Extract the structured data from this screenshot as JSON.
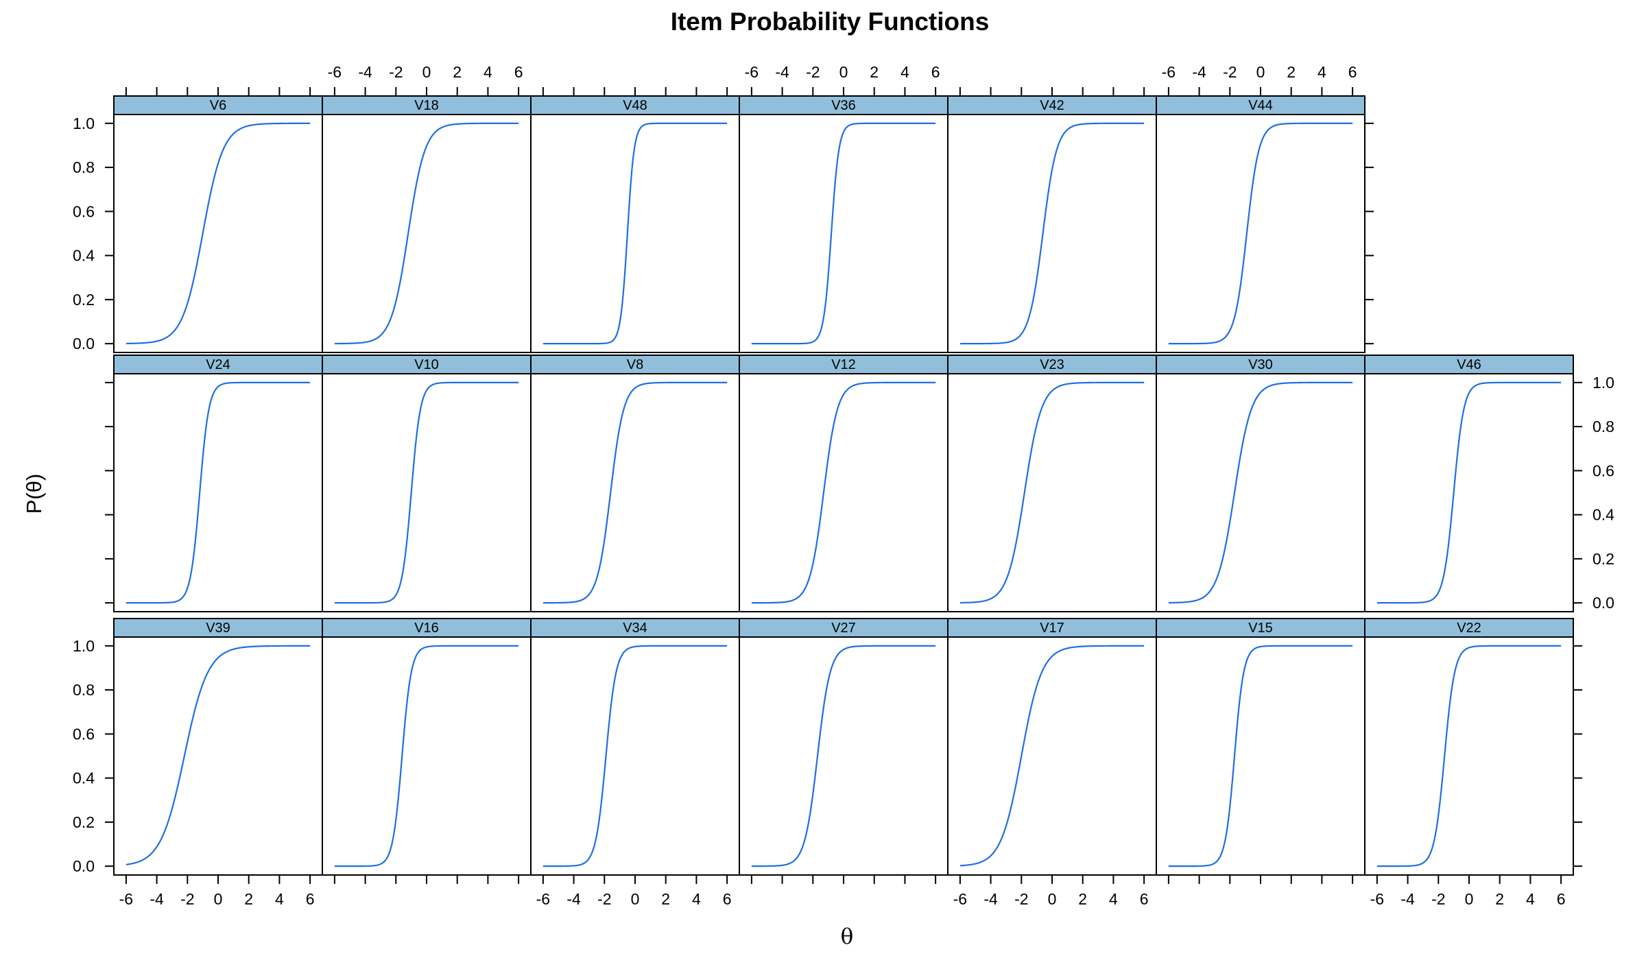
{
  "chart_data": {
    "type": "line",
    "title": "Item Probability Functions",
    "xlabel": "θ",
    "ylabel": "P(θ)",
    "xlim": [
      -6.8,
      6.8
    ],
    "ylim": [
      -0.04,
      1.04
    ],
    "x_ticks": [
      -6,
      -4,
      -2,
      0,
      2,
      4,
      6
    ],
    "y_ticks": [
      0.0,
      0.2,
      0.4,
      0.6,
      0.8,
      1.0
    ],
    "y_tick_labels": [
      "0.0",
      "0.2",
      "0.4",
      "0.6",
      "0.8",
      "1.0"
    ],
    "x_tick_labels": [
      "-6",
      "-4",
      "-2",
      "0",
      "2",
      "4",
      "6"
    ],
    "grid": false,
    "line_color": "#1F6FE0",
    "strip_color": "#91BFDB",
    "layout": {
      "columns": 7,
      "rows": 3
    },
    "panels": [
      {
        "name": "V39",
        "row": 0,
        "col": 0,
        "a": 1.3,
        "b": -2.2
      },
      {
        "name": "V16",
        "row": 0,
        "col": 1,
        "a": 3.3,
        "b": -1.6
      },
      {
        "name": "V34",
        "row": 0,
        "col": 2,
        "a": 3.0,
        "b": -1.9
      },
      {
        "name": "V27",
        "row": 0,
        "col": 3,
        "a": 2.4,
        "b": -1.7
      },
      {
        "name": "V17",
        "row": 0,
        "col": 4,
        "a": 1.5,
        "b": -2.0
      },
      {
        "name": "V15",
        "row": 0,
        "col": 5,
        "a": 3.3,
        "b": -1.7
      },
      {
        "name": "V22",
        "row": 0,
        "col": 6,
        "a": 3.0,
        "b": -1.6
      },
      {
        "name": "V24",
        "row": 1,
        "col": 0,
        "a": 3.3,
        "b": -1.2
      },
      {
        "name": "V10",
        "row": 1,
        "col": 1,
        "a": 3.3,
        "b": -1.0
      },
      {
        "name": "V8",
        "row": 1,
        "col": 2,
        "a": 2.3,
        "b": -1.6
      },
      {
        "name": "V12",
        "row": 1,
        "col": 3,
        "a": 2.2,
        "b": -1.3
      },
      {
        "name": "V23",
        "row": 1,
        "col": 4,
        "a": 1.8,
        "b": -1.8
      },
      {
        "name": "V30",
        "row": 1,
        "col": 5,
        "a": 1.8,
        "b": -1.7
      },
      {
        "name": "V46",
        "row": 1,
        "col": 6,
        "a": 3.0,
        "b": -1.0
      },
      {
        "name": "V6",
        "row": 2,
        "col": 0,
        "a": 1.5,
        "b": -1.0
      },
      {
        "name": "V18",
        "row": 2,
        "col": 1,
        "a": 1.8,
        "b": -1.2
      },
      {
        "name": "V48",
        "row": 2,
        "col": 2,
        "a": 4.5,
        "b": -0.5
      },
      {
        "name": "V36",
        "row": 2,
        "col": 3,
        "a": 4.0,
        "b": -0.8
      },
      {
        "name": "V42",
        "row": 2,
        "col": 4,
        "a": 2.2,
        "b": -0.6
      },
      {
        "name": "V44",
        "row": 2,
        "col": 5,
        "a": 2.5,
        "b": -0.9
      }
    ]
  }
}
